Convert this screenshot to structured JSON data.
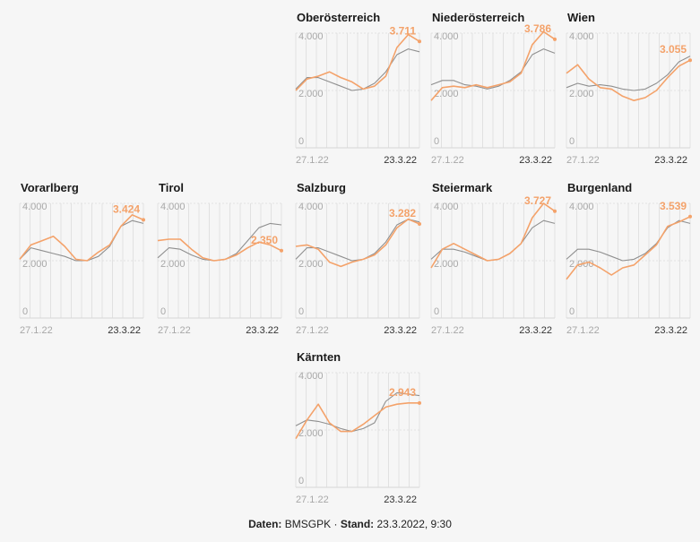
{
  "source": {
    "data_label": "Daten:",
    "data_value": "BMSGPK",
    "separator": "·",
    "stand_label": "Stand:",
    "stand_value": "23.3.2022, 9:30"
  },
  "colors": {
    "state": "#f4a26a",
    "austria": "#8f8f8f",
    "grid": "#e1e1e1",
    "axis_text": "#a8a8a8"
  },
  "chart_data": [
    {
      "type": "line",
      "title": "Oberösterreich",
      "value_label": "3.711",
      "y_ticks": [
        "4.000",
        "2.000",
        "0"
      ],
      "ylim": [
        0,
        4000
      ],
      "x_start": "27.1.22",
      "x_end": "23.3.22",
      "x": [
        0,
        5,
        10,
        15,
        20,
        25,
        30,
        35,
        40,
        45,
        50,
        55
      ],
      "series": [
        {
          "values": [
            2000,
            2400,
            2500,
            2650,
            2450,
            2300,
            2050,
            2150,
            2500,
            3500,
            3950,
            3711
          ]
        },
        {
          "values": [
            2050,
            2450,
            2450,
            2300,
            2150,
            2000,
            2050,
            2250,
            2650,
            3250,
            3450,
            3350
          ]
        }
      ]
    },
    {
      "type": "line",
      "title": "Niederösterreich",
      "value_label": "3.786",
      "y_ticks": [
        "4.000",
        "2.000",
        "0"
      ],
      "ylim": [
        0,
        4000
      ],
      "x_start": "27.1.22",
      "x_end": "23.3.22",
      "x": [
        0,
        5,
        10,
        15,
        20,
        25,
        30,
        35,
        40,
        45,
        50,
        55
      ],
      "series": [
        {
          "values": [
            1650,
            2100,
            2150,
            2100,
            2200,
            2100,
            2200,
            2300,
            2600,
            3600,
            4050,
            3786
          ]
        },
        {
          "values": [
            2200,
            2350,
            2350,
            2200,
            2150,
            2050,
            2150,
            2350,
            2650,
            3250,
            3450,
            3300
          ]
        }
      ]
    },
    {
      "type": "line",
      "title": "Wien",
      "value_label": "3.055",
      "y_ticks": [
        "4.000",
        "2.000",
        "0"
      ],
      "ylim": [
        0,
        4000
      ],
      "x_start": "27.1.22",
      "x_end": "23.3.22",
      "x": [
        0,
        5,
        10,
        15,
        20,
        25,
        30,
        35,
        40,
        45,
        50,
        55
      ],
      "series": [
        {
          "values": [
            2600,
            2900,
            2400,
            2100,
            2050,
            1800,
            1650,
            1750,
            2000,
            2450,
            2850,
            3055
          ]
        },
        {
          "values": [
            2100,
            2250,
            2150,
            2200,
            2150,
            2050,
            2000,
            2050,
            2250,
            2550,
            3000,
            3200
          ]
        }
      ]
    },
    {
      "type": "line",
      "title": "Vorarlberg",
      "value_label": "3.424",
      "y_ticks": [
        "4.000",
        "2.000",
        "0"
      ],
      "ylim": [
        0,
        4000
      ],
      "x_start": "27.1.22",
      "x_end": "23.3.22",
      "x": [
        0,
        5,
        10,
        15,
        20,
        25,
        30,
        35,
        40,
        45,
        50,
        55
      ],
      "series": [
        {
          "values": [
            2050,
            2550,
            2700,
            2850,
            2500,
            2050,
            2000,
            2300,
            2550,
            3200,
            3600,
            3424
          ]
        },
        {
          "values": [
            2050,
            2450,
            2350,
            2250,
            2150,
            2000,
            2000,
            2150,
            2500,
            3200,
            3400,
            3300
          ]
        }
      ]
    },
    {
      "type": "line",
      "title": "Tirol",
      "value_label": "2.350",
      "y_ticks": [
        "4.000",
        "2.000",
        "0"
      ],
      "ylim": [
        0,
        4000
      ],
      "x_start": "27.1.22",
      "x_end": "23.3.22",
      "x": [
        0,
        5,
        10,
        15,
        20,
        25,
        30,
        35,
        40,
        45,
        50,
        55
      ],
      "series": [
        {
          "values": [
            2700,
            2750,
            2750,
            2400,
            2100,
            2000,
            2050,
            2200,
            2450,
            2650,
            2550,
            2350
          ]
        },
        {
          "values": [
            2100,
            2450,
            2400,
            2200,
            2050,
            2000,
            2050,
            2250,
            2700,
            3150,
            3300,
            3250
          ]
        }
      ]
    },
    {
      "type": "line",
      "title": "Salzburg",
      "value_label": "3.282",
      "y_ticks": [
        "4.000",
        "2.000",
        "0"
      ],
      "ylim": [
        0,
        4000
      ],
      "x_start": "27.1.22",
      "x_end": "23.3.22",
      "x": [
        0,
        5,
        10,
        15,
        20,
        25,
        30,
        35,
        40,
        45,
        50,
        55
      ],
      "series": [
        {
          "values": [
            2500,
            2550,
            2400,
            1950,
            1800,
            1950,
            2050,
            2200,
            2550,
            3150,
            3450,
            3282
          ]
        },
        {
          "values": [
            2050,
            2450,
            2450,
            2300,
            2150,
            2000,
            2050,
            2250,
            2650,
            3250,
            3450,
            3350
          ]
        }
      ]
    },
    {
      "type": "line",
      "title": "Steiermark",
      "value_label": "3.727",
      "y_ticks": [
        "4.000",
        "2.000",
        "0"
      ],
      "ylim": [
        0,
        4000
      ],
      "x_start": "27.1.22",
      "x_end": "23.3.22",
      "x": [
        0,
        5,
        10,
        15,
        20,
        25,
        30,
        35,
        40,
        45,
        50,
        55
      ],
      "series": [
        {
          "values": [
            1750,
            2400,
            2600,
            2400,
            2200,
            2000,
            2050,
            2250,
            2600,
            3500,
            4000,
            3727
          ]
        },
        {
          "values": [
            2050,
            2400,
            2400,
            2300,
            2150,
            2000,
            2050,
            2250,
            2600,
            3150,
            3400,
            3300
          ]
        }
      ]
    },
    {
      "type": "line",
      "title": "Burgenland",
      "value_label": "3.539",
      "y_ticks": [
        "4.000",
        "2.000",
        "0"
      ],
      "ylim": [
        0,
        4000
      ],
      "x_start": "27.1.22",
      "x_end": "23.3.22",
      "x": [
        0,
        5,
        10,
        15,
        20,
        25,
        30,
        35,
        40,
        45,
        50,
        55
      ],
      "series": [
        {
          "values": [
            1350,
            1850,
            1950,
            1750,
            1500,
            1750,
            1850,
            2200,
            2550,
            3200,
            3350,
            3539
          ]
        },
        {
          "values": [
            2050,
            2400,
            2400,
            2300,
            2150,
            2000,
            2050,
            2250,
            2600,
            3150,
            3400,
            3300
          ]
        }
      ]
    },
    {
      "type": "line",
      "title": "Kärnten",
      "value_label": "2.943",
      "y_ticks": [
        "4.000",
        "2.000",
        "0"
      ],
      "ylim": [
        0,
        4000
      ],
      "x_start": "27.1.22",
      "x_end": "23.3.22",
      "x": [
        0,
        5,
        10,
        15,
        20,
        25,
        30,
        35,
        40,
        45,
        50,
        55
      ],
      "series": [
        {
          "values": [
            1700,
            2350,
            2900,
            2250,
            1950,
            1950,
            2200,
            2500,
            2800,
            2900,
            2943,
            2943
          ]
        },
        {
          "values": [
            2150,
            2350,
            2300,
            2200,
            2050,
            1950,
            2050,
            2250,
            3000,
            3300,
            3250,
            3200
          ]
        }
      ]
    }
  ]
}
